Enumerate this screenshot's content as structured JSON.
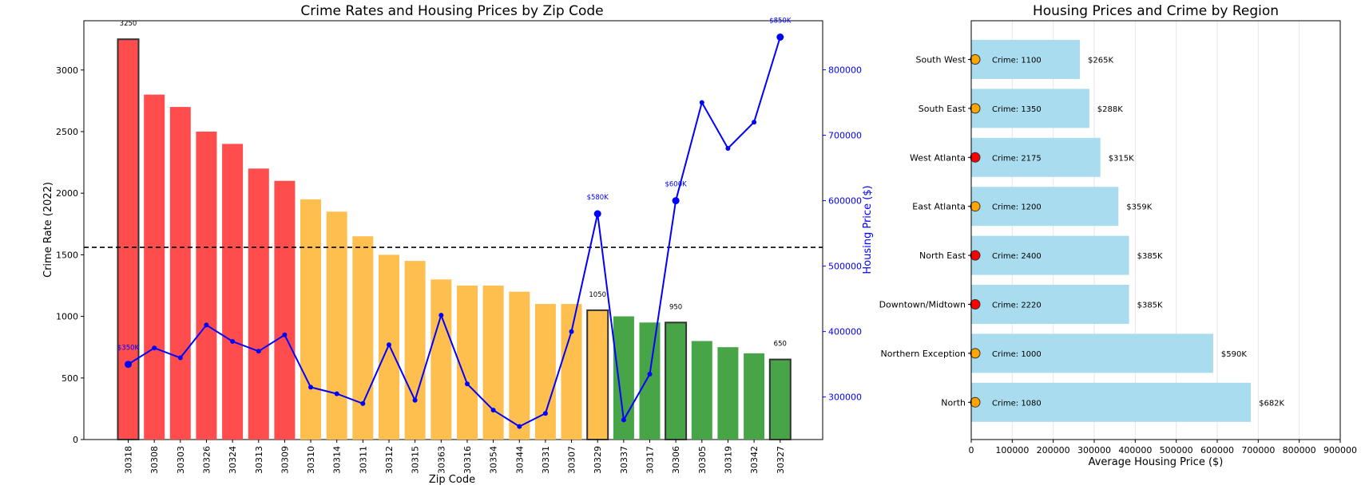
{
  "colors": {
    "high": "#ff4d4d",
    "medium": "#ffbf4f",
    "low": "#47a447",
    "line": "#0000ff",
    "hbar": "#a8dcee",
    "dot_orange": "#ffa500",
    "dot_red": "#ff0000"
  },
  "chart_data": [
    {
      "type": "bar",
      "title": "Crime Rates and Housing Prices by Zip Code",
      "xlabel": "Zip Code",
      "ylabel": "Crime Rate (2022)",
      "ylabel_right": "Housing Price ($)",
      "ylim": [
        0,
        3400
      ],
      "ylim_right": [
        235000,
        875000
      ],
      "yticks": [
        0,
        500,
        1000,
        1500,
        2000,
        2500,
        3000
      ],
      "yticks_right": [
        300000,
        400000,
        500000,
        600000,
        700000,
        800000
      ],
      "reference_line_value": 1560,
      "grid": false,
      "categories": [
        "30318",
        "30308",
        "30303",
        "30326",
        "30324",
        "30313",
        "30309",
        "30310",
        "30314",
        "30311",
        "30312",
        "30315",
        "30363",
        "30316",
        "30354",
        "30344",
        "30331",
        "30307",
        "30329",
        "30337",
        "30317",
        "30306",
        "30305",
        "30319",
        "30342",
        "30327"
      ],
      "crime_rate": [
        3250,
        2800,
        2700,
        2500,
        2400,
        2200,
        2100,
        1950,
        1850,
        1650,
        1500,
        1450,
        1300,
        1250,
        1250,
        1200,
        1100,
        1100,
        1050,
        1000,
        950,
        950,
        800,
        750,
        700,
        650
      ],
      "risk_level": [
        "high",
        "high",
        "high",
        "high",
        "high",
        "high",
        "high",
        "medium",
        "medium",
        "medium",
        "medium",
        "medium",
        "medium",
        "medium",
        "medium",
        "medium",
        "medium",
        "medium",
        "medium",
        "low",
        "low",
        "low",
        "low",
        "low",
        "low",
        "low"
      ],
      "outlined": [
        true,
        false,
        false,
        false,
        false,
        false,
        false,
        false,
        false,
        false,
        false,
        false,
        false,
        false,
        false,
        false,
        false,
        false,
        true,
        false,
        false,
        true,
        false,
        false,
        false,
        true
      ],
      "crime_labels": [
        {
          "index": 0,
          "text": "3250"
        },
        {
          "index": 18,
          "text": "1050"
        },
        {
          "index": 21,
          "text": "950"
        },
        {
          "index": 25,
          "text": "650"
        }
      ],
      "housing_price": [
        350000,
        375000,
        360000,
        410000,
        385000,
        370000,
        395000,
        315000,
        305000,
        290000,
        380000,
        295000,
        425000,
        320000,
        280000,
        255000,
        275000,
        400000,
        580000,
        265000,
        335000,
        600000,
        750000,
        680000,
        720000,
        850000
      ],
      "price_labels": [
        {
          "index": 0,
          "text": "$350K"
        },
        {
          "index": 18,
          "text": "$580K"
        },
        {
          "index": 21,
          "text": "$600K"
        },
        {
          "index": 25,
          "text": "$850K"
        }
      ],
      "highlighted_points": [
        0,
        18,
        21,
        25
      ]
    },
    {
      "type": "bar",
      "orientation": "horizontal",
      "title": "Housing Prices and Crime by Region",
      "xlabel": "Average Housing Price ($)",
      "xlim": [
        0,
        900000
      ],
      "xticks": [
        0,
        100000,
        200000,
        300000,
        400000,
        500000,
        600000,
        700000,
        800000,
        900000
      ],
      "grid": "vertical",
      "categories": [
        "South West",
        "South East",
        "West Atlanta",
        "East Atlanta",
        "North East",
        "Downtown/Midtown",
        "Northern Exception",
        "North"
      ],
      "values": [
        265000,
        288000,
        315000,
        359000,
        385000,
        385000,
        590000,
        682000
      ],
      "value_labels": [
        "$265K",
        "$288K",
        "$315K",
        "$359K",
        "$385K",
        "$385K",
        "$590K",
        "$682K"
      ],
      "crime_labels": [
        "Crime: 1100",
        "Crime: 1350",
        "Crime: 2175",
        "Crime: 1200",
        "Crime: 2400",
        "Crime: 2220",
        "Crime: 1000",
        "Crime: 1080"
      ],
      "marker_colors": [
        "orange",
        "orange",
        "red",
        "orange",
        "red",
        "red",
        "orange",
        "orange"
      ]
    }
  ]
}
